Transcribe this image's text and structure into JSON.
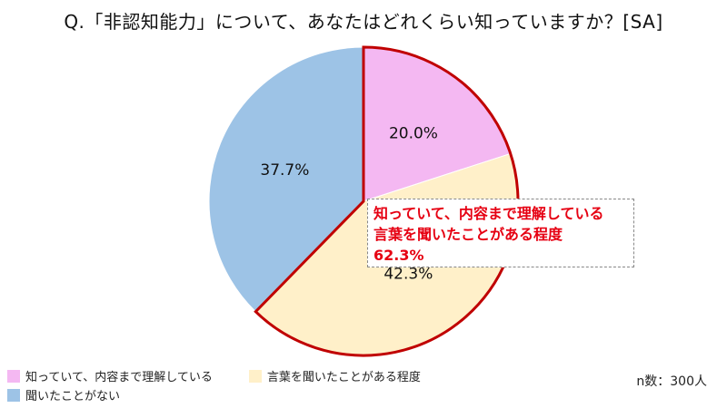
{
  "title": "Q.「非認知能力」について、あなたはどれくらい知っていますか？[SA]",
  "note": "n数：300人",
  "callout": {
    "line1": "知っていて、内容まで理解している",
    "line2": "言葉を聞いたことがある程度",
    "value": "62.3%",
    "color": "#e60012"
  },
  "colors": {
    "outline_highlight": "#c00000",
    "outline_default": "#ffffff"
  },
  "chart_data": {
    "type": "pie",
    "start_angle_deg": 0,
    "direction": "clockwise",
    "slices": [
      {
        "label": "知っていて、内容まで理解している",
        "value": 20.0,
        "display": "20.0%",
        "color": "#f4b8f2",
        "highlighted": true
      },
      {
        "label": "言葉を聞いたことがある程度",
        "value": 42.3,
        "display": "42.3%",
        "color": "#fff0c9",
        "highlighted": true
      },
      {
        "label": "聞いたことがない",
        "value": 37.7,
        "display": "37.7%",
        "color": "#9dc3e6",
        "highlighted": false
      }
    ]
  }
}
